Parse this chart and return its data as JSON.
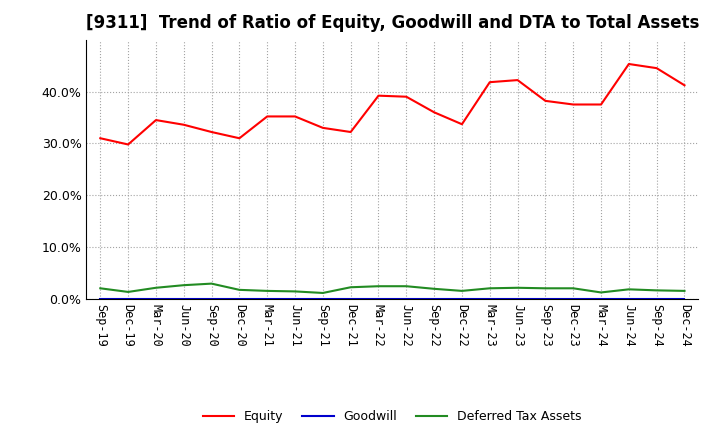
{
  "title": "[9311]  Trend of Ratio of Equity, Goodwill and DTA to Total Assets",
  "x_labels": [
    "Sep-19",
    "Dec-19",
    "Mar-20",
    "Jun-20",
    "Sep-20",
    "Dec-20",
    "Mar-21",
    "Jun-21",
    "Sep-21",
    "Dec-21",
    "Mar-22",
    "Jun-22",
    "Sep-22",
    "Dec-22",
    "Mar-23",
    "Jun-23",
    "Sep-23",
    "Dec-23",
    "Mar-24",
    "Jun-24",
    "Sep-24",
    "Dec-24"
  ],
  "equity": [
    0.31,
    0.298,
    0.345,
    0.336,
    0.322,
    0.31,
    0.352,
    0.352,
    0.33,
    0.322,
    0.392,
    0.39,
    0.36,
    0.337,
    0.418,
    0.422,
    0.382,
    0.375,
    0.375,
    0.453,
    0.445,
    0.412
  ],
  "goodwill": [
    0.0,
    0.0,
    0.0,
    0.0,
    0.0,
    0.0,
    0.0,
    0.0,
    0.0,
    0.0,
    0.0,
    0.0,
    0.0,
    0.0,
    0.0,
    0.0,
    0.0,
    0.0,
    0.0,
    0.0,
    0.0,
    0.0
  ],
  "dta": [
    0.021,
    0.014,
    0.022,
    0.027,
    0.03,
    0.018,
    0.016,
    0.015,
    0.012,
    0.023,
    0.025,
    0.025,
    0.02,
    0.016,
    0.021,
    0.022,
    0.021,
    0.021,
    0.013,
    0.019,
    0.017,
    0.016
  ],
  "equity_color": "#ff0000",
  "goodwill_color": "#0000cd",
  "dta_color": "#228b22",
  "ylim": [
    0.0,
    0.5
  ],
  "yticks": [
    0.0,
    0.1,
    0.2,
    0.3,
    0.4
  ],
  "background_color": "#ffffff",
  "grid_color": "#999999",
  "title_fontsize": 12,
  "legend_labels": [
    "Equity",
    "Goodwill",
    "Deferred Tax Assets"
  ]
}
